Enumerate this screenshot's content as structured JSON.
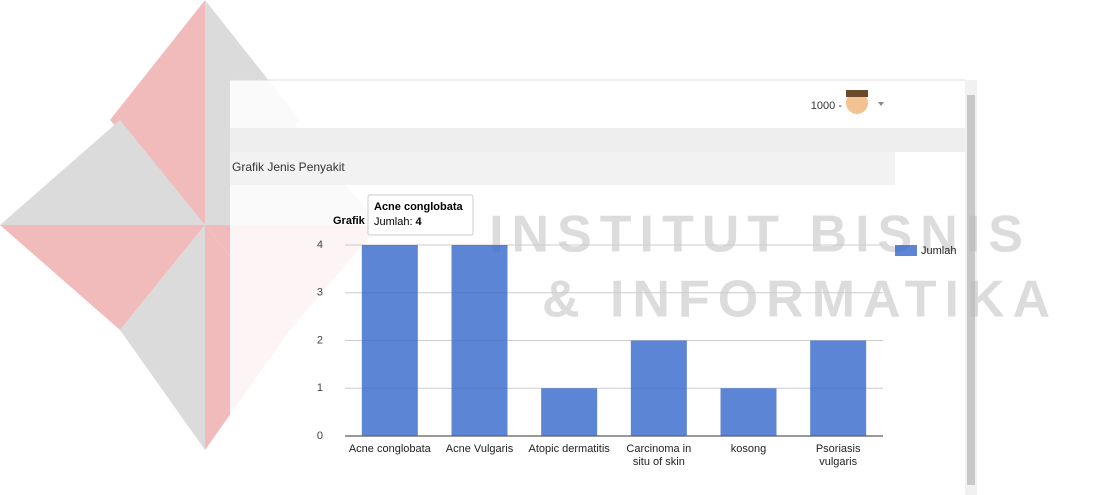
{
  "header": {
    "user": "1000 -"
  },
  "panel": {
    "title": "Grafik Jenis Penyakit"
  },
  "watermark": {
    "line1": "INSTITUT BISNIS",
    "line2": "& INFORMATIKA"
  },
  "chart_data": {
    "type": "bar",
    "title": "Grafik",
    "categories": [
      "Acne conglobata",
      "Acne Vulgaris",
      "Atopic dermatitis",
      "Carcinoma in situ of skin",
      "kosong",
      "Psoriasis vulgaris"
    ],
    "series": [
      {
        "name": "Jumlah",
        "color": "#3366cc",
        "values": [
          4,
          4,
          1,
          2,
          1,
          2
        ]
      }
    ],
    "ylim": [
      0,
      4
    ],
    "yticks": [
      0,
      1,
      2,
      3,
      4
    ],
    "grid": true,
    "legend": "right",
    "tooltip": {
      "title": "Acne conglobata",
      "label": "Jumlah:",
      "value": 4
    }
  }
}
